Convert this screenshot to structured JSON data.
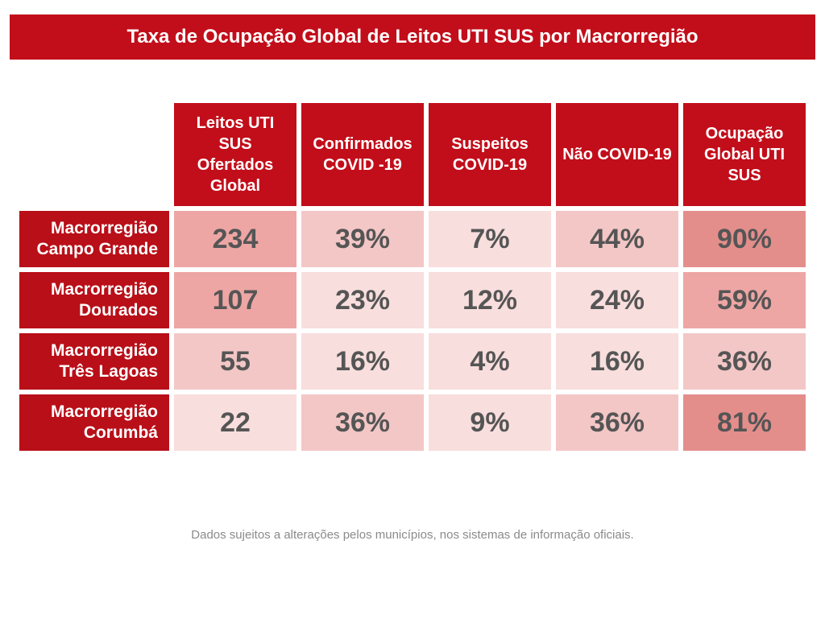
{
  "title": "Taxa de Ocupação Global de Leitos UTI SUS por Macrorregião",
  "title_style": {
    "bg": "#c20e1a",
    "color": "#ffffff",
    "fontsize": 24
  },
  "table": {
    "header_bg": "#c20e1a",
    "rowlabel_bg": "#b90f18",
    "cell_colors": {
      "shade1": "#eda6a4",
      "shade2": "#f3c7c6",
      "shade3": "#f8dedd",
      "shade4": "#e48e8c"
    },
    "columns": [
      "Leitos UTI SUS Ofertados Global",
      "Confirmados COVID -19",
      "Suspeitos COVID-19",
      "Não COVID-19",
      "Ocupação Global UTI SUS"
    ],
    "rows": [
      {
        "label": "Macrorregião Campo Grande",
        "cells": [
          {
            "value": "234",
            "shade": "shade1"
          },
          {
            "value": "39%",
            "shade": "shade2"
          },
          {
            "value": "7%",
            "shade": "shade3"
          },
          {
            "value": "44%",
            "shade": "shade2"
          },
          {
            "value": "90%",
            "shade": "shade4"
          }
        ]
      },
      {
        "label": "Macrorregião Dourados",
        "cells": [
          {
            "value": "107",
            "shade": "shade1"
          },
          {
            "value": "23%",
            "shade": "shade3"
          },
          {
            "value": "12%",
            "shade": "shade3"
          },
          {
            "value": "24%",
            "shade": "shade3"
          },
          {
            "value": "59%",
            "shade": "shade1"
          }
        ]
      },
      {
        "label": "Macrorregião Três Lagoas",
        "cells": [
          {
            "value": "55",
            "shade": "shade2"
          },
          {
            "value": "16%",
            "shade": "shade3"
          },
          {
            "value": "4%",
            "shade": "shade3"
          },
          {
            "value": "16%",
            "shade": "shade3"
          },
          {
            "value": "36%",
            "shade": "shade2"
          }
        ]
      },
      {
        "label": "Macrorregião Corumbá",
        "cells": [
          {
            "value": "22",
            "shade": "shade3"
          },
          {
            "value": "36%",
            "shade": "shade2"
          },
          {
            "value": "9%",
            "shade": "shade3"
          },
          {
            "value": "36%",
            "shade": "shade2"
          },
          {
            "value": "81%",
            "shade": "shade4"
          }
        ]
      }
    ]
  },
  "footnote": "Dados sujeitos a alterações pelos municípios, nos sistemas de informação oficiais."
}
